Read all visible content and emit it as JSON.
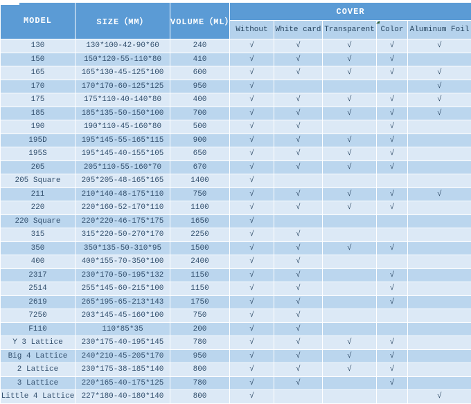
{
  "colors": {
    "header_bg": "#5b9bd5",
    "header_text": "#ffffff",
    "subheader_bg": "#b5d2ec",
    "subheader_text": "#27455f",
    "row_light": "#dce9f6",
    "row_dark": "#bbd6ee",
    "body_text": "#33506e",
    "check": "#2e4a66",
    "marker_green": "#2e5e35"
  },
  "chart_data": {
    "type": "table",
    "check_glyph": "√",
    "header": {
      "model": "MODEL",
      "size": "SIZE（MM）",
      "volume": "VOLUME（ML）",
      "cover": "COVER",
      "cover_types": [
        "Without",
        "White card",
        "Transparent",
        "Color",
        "Aluminum Foil"
      ]
    },
    "rows": [
      {
        "model": "130",
        "size": "130*100-42-90*60",
        "volume": "240",
        "covers": [
          1,
          1,
          1,
          1,
          1
        ]
      },
      {
        "model": "150",
        "size": "150*120-55-110*80",
        "volume": "410",
        "covers": [
          1,
          1,
          1,
          1,
          0
        ]
      },
      {
        "model": "165",
        "size": "165*130-45-125*100",
        "volume": "600",
        "covers": [
          1,
          1,
          1,
          1,
          1
        ]
      },
      {
        "model": "170",
        "size": "170*170-60-125*125",
        "volume": "950",
        "covers": [
          1,
          0,
          0,
          0,
          1
        ]
      },
      {
        "model": "175",
        "size": "175*110-40-140*80",
        "volume": "400",
        "covers": [
          1,
          1,
          1,
          1,
          1
        ]
      },
      {
        "model": "185",
        "size": "185*135-50-150*100",
        "volume": "700",
        "covers": [
          1,
          1,
          1,
          1,
          1
        ]
      },
      {
        "model": "190",
        "size": "190*110-45-160*80",
        "volume": "500",
        "covers": [
          1,
          1,
          0,
          1,
          0
        ]
      },
      {
        "model": "195D",
        "size": "195*145-55-165*115",
        "volume": "900",
        "covers": [
          1,
          1,
          1,
          1,
          0
        ]
      },
      {
        "model": "195S",
        "size": "195*145-40-155*105",
        "volume": "650",
        "covers": [
          1,
          1,
          1,
          1,
          0
        ]
      },
      {
        "model": "205",
        "size": "205*110-55-160*70",
        "volume": "670",
        "covers": [
          1,
          1,
          1,
          1,
          0
        ]
      },
      {
        "model": "205 Square",
        "size": "205*205-48-165*165",
        "volume": "1400",
        "covers": [
          1,
          0,
          0,
          0,
          0
        ]
      },
      {
        "model": "211",
        "size": "210*140-48-175*110",
        "volume": "750",
        "covers": [
          1,
          1,
          1,
          1,
          1
        ]
      },
      {
        "model": "220",
        "size": "220*160-52-170*110",
        "volume": "1100",
        "covers": [
          1,
          1,
          1,
          1,
          0
        ]
      },
      {
        "model": "220 Square",
        "size": "220*220-46-175*175",
        "volume": "1650",
        "covers": [
          1,
          0,
          0,
          0,
          0
        ]
      },
      {
        "model": "315",
        "size": "315*220-50-270*170",
        "volume": "2250",
        "covers": [
          1,
          1,
          0,
          0,
          0
        ]
      },
      {
        "model": "350",
        "size": "350*135-50-310*95",
        "volume": "1500",
        "covers": [
          1,
          1,
          1,
          1,
          0
        ]
      },
      {
        "model": "400",
        "size": "400*155-70-350*100",
        "volume": "2400",
        "covers": [
          1,
          1,
          0,
          0,
          0
        ]
      },
      {
        "model": "2317",
        "size": "230*170-50-195*132",
        "volume": "1150",
        "covers": [
          1,
          1,
          0,
          1,
          0
        ]
      },
      {
        "model": "2514",
        "size": "255*145-60-215*100",
        "volume": "1150",
        "covers": [
          1,
          1,
          0,
          1,
          0
        ]
      },
      {
        "model": "2619",
        "size": "265*195-65-213*143",
        "volume": "1750",
        "covers": [
          1,
          1,
          0,
          1,
          0
        ]
      },
      {
        "model": "7250",
        "size": "203*145-45-160*100",
        "volume": "750",
        "covers": [
          1,
          1,
          0,
          0,
          0
        ]
      },
      {
        "model": "F110",
        "size": "110*85*35",
        "volume": "200",
        "covers": [
          1,
          1,
          0,
          0,
          0
        ]
      },
      {
        "model": "Y 3 Lattice",
        "size": "230*175-40-195*145",
        "volume": "780",
        "covers": [
          1,
          1,
          1,
          1,
          0
        ]
      },
      {
        "model": "Big 4 Lattice",
        "size": "240*210-45-205*170",
        "volume": "950",
        "covers": [
          1,
          1,
          1,
          1,
          0
        ]
      },
      {
        "model": "2 Lattice",
        "size": "230*175-38-185*140",
        "volume": "800",
        "covers": [
          1,
          1,
          1,
          1,
          0
        ]
      },
      {
        "model": "3 Lattice",
        "size": "220*165-40-175*125",
        "volume": "780",
        "covers": [
          1,
          1,
          0,
          1,
          0
        ]
      },
      {
        "model": "Little 4 Lattice",
        "size": "227*180-40-180*140",
        "volume": "800",
        "covers": [
          1,
          0,
          0,
          0,
          1
        ]
      }
    ]
  }
}
